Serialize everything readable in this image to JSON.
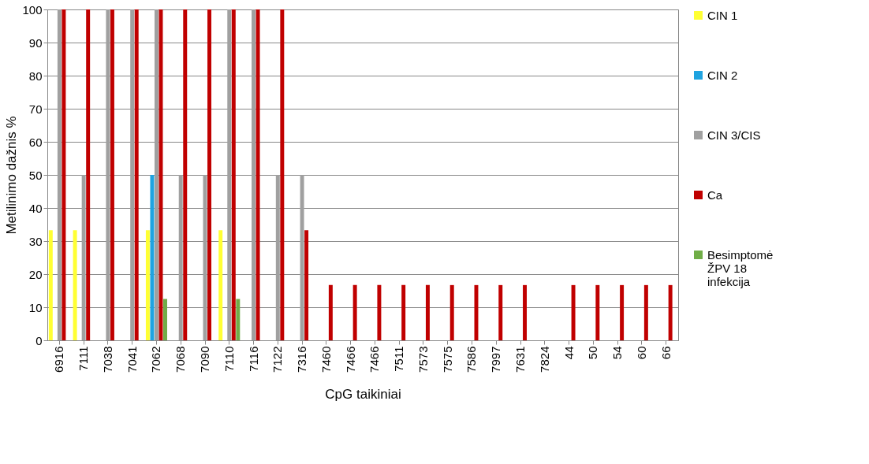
{
  "chart_data": {
    "type": "bar",
    "xlabel": "CpG taikiniai",
    "ylabel": "Metilinimo dažnis %",
    "categories": [
      "6916",
      "7111",
      "7038",
      "7041",
      "7062",
      "7068",
      "7090",
      "7110",
      "7116",
      "7122",
      "7316",
      "7460",
      "7466",
      "7466",
      "7511",
      "7573",
      "7575",
      "7586",
      "7997",
      "7631",
      "7824",
      "44",
      "50",
      "54",
      "60",
      "66"
    ],
    "series": [
      {
        "name": "CIN 1",
        "color": "#ffff33",
        "values": [
          33.3,
          33.3,
          0,
          0,
          33.3,
          0,
          0,
          33.3,
          0,
          0,
          0,
          0,
          0,
          0,
          0,
          0,
          0,
          0,
          0,
          0,
          0,
          0,
          0,
          0,
          0,
          0
        ]
      },
      {
        "name": "CIN 2",
        "color": "#1fa3e0",
        "values": [
          0,
          0,
          0,
          0,
          50,
          0,
          0,
          0,
          0,
          0,
          0,
          0,
          0,
          0,
          0,
          0,
          0,
          0,
          0,
          0,
          0,
          0,
          0,
          0,
          0,
          0
        ]
      },
      {
        "name": "CIN 3/CIS",
        "color": "#a0a0a0",
        "values": [
          100,
          50,
          100,
          100,
          100,
          50,
          50,
          100,
          100,
          50,
          50,
          0,
          0,
          0,
          0,
          0,
          0,
          0,
          0,
          0,
          0,
          0,
          0,
          0,
          0,
          0
        ]
      },
      {
        "name": "Ca",
        "color": "#c00000",
        "values": [
          100,
          100,
          100,
          100,
          100,
          100,
          100,
          100,
          100,
          100,
          33.3,
          16.7,
          16.7,
          16.7,
          16.7,
          16.7,
          16.7,
          16.7,
          16.7,
          16.7,
          0,
          16.7,
          16.7,
          16.7,
          16.7,
          16.7
        ]
      },
      {
        "name": "Besimptomė ŽPV 18 infekcija",
        "color": "#70ad47",
        "values": [
          0,
          0,
          0,
          0,
          12.5,
          0,
          0,
          12.5,
          0,
          0,
          0,
          0,
          0,
          0,
          0,
          0,
          0,
          0,
          0,
          0,
          0,
          0,
          0,
          0,
          0,
          0
        ]
      }
    ],
    "ylim": [
      0,
      100
    ],
    "yticks": [
      0,
      10,
      20,
      30,
      40,
      50,
      60,
      70,
      80,
      90,
      100
    ],
    "grid": "y",
    "legend": "right"
  }
}
